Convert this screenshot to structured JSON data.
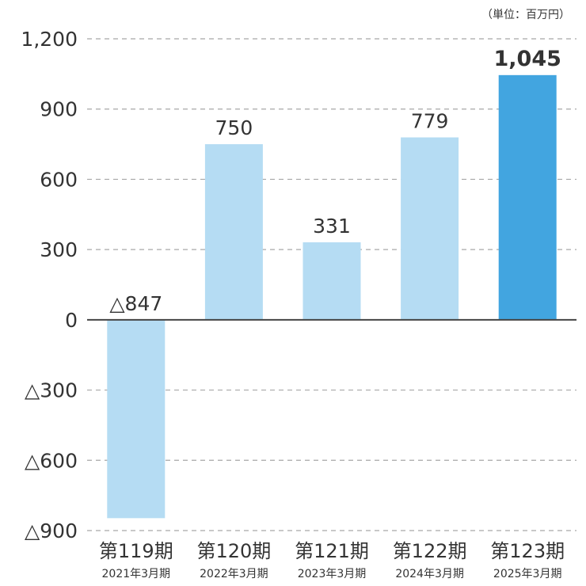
{
  "chart_data": {
    "type": "bar",
    "unit_note": "（単位：百万円）",
    "categories": [
      "第119期",
      "第120期",
      "第121期",
      "第122期",
      "第123期"
    ],
    "sub_labels": [
      "2021年3月期",
      "2022年3月期",
      "2023年3月期",
      "2024年3月期",
      "2025年3月期"
    ],
    "values": [
      -847,
      750,
      331,
      779,
      1045
    ],
    "value_labels": [
      "△847",
      "750",
      "331",
      "779",
      "1,045"
    ],
    "highlight_index": 4,
    "ylim": [
      -900,
      1200
    ],
    "yticks": [
      1200,
      900,
      600,
      300,
      0,
      -300,
      -600,
      -900
    ],
    "ytick_labels": [
      "1,200",
      "900",
      "600",
      "300",
      "0",
      "△300",
      "△600",
      "△900"
    ],
    "grid": true,
    "colors": {
      "bar": "#b5dcf3",
      "highlight": "#42a5e0",
      "grid": "#a8a8a8",
      "zero_line": "#444444",
      "text": "#333333"
    }
  }
}
